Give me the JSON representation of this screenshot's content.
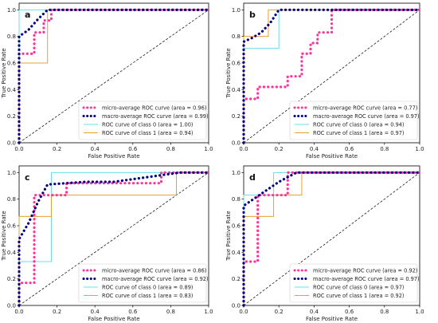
{
  "chart_data": [
    {
      "panel_label": "a",
      "type": "line",
      "xlabel": "False Positive Rate",
      "ylabel": "True Positive Rate",
      "xlim": [
        0,
        1
      ],
      "ylim": [
        0,
        1.05
      ],
      "xticks": [
        "0.0",
        "0.2",
        "0.4",
        "0.6",
        "0.8",
        "1.0"
      ],
      "yticks": [
        "0.0",
        "0.2",
        "0.4",
        "0.6",
        "0.8",
        "1.0"
      ],
      "legend_position": "lower-right",
      "series": [
        {
          "name": "micro-average ROC curve (area = 0.96)",
          "color": "#ff3399",
          "style": "dotted-thick",
          "points": [
            [
              0,
              0
            ],
            [
              0,
              0.67
            ],
            [
              0.08,
              0.67
            ],
            [
              0.08,
              0.83
            ],
            [
              0.13,
              0.83
            ],
            [
              0.13,
              0.92
            ],
            [
              0.17,
              0.92
            ],
            [
              0.17,
              1.0
            ],
            [
              1,
              1
            ]
          ]
        },
        {
          "name": "macro-average ROC curve (area = 0.99)",
          "color": "#000080",
          "style": "dotted-thick",
          "points": [
            [
              0,
              0
            ],
            [
              0,
              0.8
            ],
            [
              0.05,
              0.85
            ],
            [
              0.1,
              0.93
            ],
            [
              0.15,
              1.0
            ],
            [
              1,
              1
            ]
          ]
        },
        {
          "name": "ROC curve of class 0 (area = 1.00)",
          "color": "#66e0e8",
          "style": "solid",
          "points": [
            [
              0,
              0
            ],
            [
              0,
              1.0
            ],
            [
              1,
              1
            ]
          ]
        },
        {
          "name": "ROC curve of class 1 (area = 0.94)",
          "color": "#e8a030",
          "style": "solid",
          "points": [
            [
              0,
              0
            ],
            [
              0,
              0.6
            ],
            [
              0.15,
              0.6
            ],
            [
              0.15,
              1.0
            ],
            [
              1,
              1
            ]
          ]
        }
      ]
    },
    {
      "panel_label": "b",
      "type": "line",
      "xlabel": "False Positive Rate",
      "ylabel": "True Positive Rate",
      "xlim": [
        0,
        1
      ],
      "ylim": [
        0,
        1.05
      ],
      "xticks": [
        "0.0",
        "0.2",
        "0.4",
        "0.6",
        "0.8",
        "1.0"
      ],
      "yticks": [
        "0.0",
        "0.2",
        "0.4",
        "0.6",
        "0.8",
        "1.0"
      ],
      "legend_position": "lower-right",
      "series": [
        {
          "name": "micro-average ROC curve (area = 0.77)",
          "color": "#ff3399",
          "style": "dotted-thick",
          "points": [
            [
              0,
              0
            ],
            [
              0,
              0.33
            ],
            [
              0.08,
              0.33
            ],
            [
              0.08,
              0.42
            ],
            [
              0.25,
              0.42
            ],
            [
              0.25,
              0.5
            ],
            [
              0.33,
              0.5
            ],
            [
              0.33,
              0.67
            ],
            [
              0.38,
              0.67
            ],
            [
              0.38,
              0.75
            ],
            [
              0.42,
              0.75
            ],
            [
              0.42,
              0.83
            ],
            [
              0.5,
              0.83
            ],
            [
              0.5,
              1.0
            ],
            [
              1,
              1
            ]
          ]
        },
        {
          "name": "macro-average ROC curve (area = 0.97)",
          "color": "#000080",
          "style": "dotted-thick",
          "points": [
            [
              0,
              0
            ],
            [
              0,
              0.76
            ],
            [
              0.05,
              0.79
            ],
            [
              0.1,
              0.83
            ],
            [
              0.15,
              0.9
            ],
            [
              0.2,
              1.0
            ],
            [
              1,
              1
            ]
          ]
        },
        {
          "name": "ROC curve of class 0 (area = 0.94)",
          "color": "#66e0e8",
          "style": "solid",
          "points": [
            [
              0,
              0
            ],
            [
              0,
              0.71
            ],
            [
              0.2,
              0.71
            ],
            [
              0.2,
              1.0
            ],
            [
              1,
              1
            ]
          ]
        },
        {
          "name": "ROC curve of class 1 (area = 0.97)",
          "color": "#e8a030",
          "style": "solid",
          "points": [
            [
              0,
              0
            ],
            [
              0,
              0.8
            ],
            [
              0.14,
              0.8
            ],
            [
              0.14,
              1.0
            ],
            [
              1,
              1
            ]
          ]
        }
      ]
    },
    {
      "panel_label": "c",
      "type": "line",
      "xlabel": "False Positive Rate",
      "ylabel": "True Positive Rate",
      "xlim": [
        0,
        1
      ],
      "ylim": [
        0,
        1.05
      ],
      "xticks": [
        "0.0",
        "0.2",
        "0.4",
        "0.6",
        "0.8",
        "1.0"
      ],
      "yticks": [
        "0.0",
        "0.2",
        "0.4",
        "0.6",
        "0.8",
        "1.0"
      ],
      "legend_position": "lower-right",
      "series": [
        {
          "name": "micro-average ROC curve (area = 0.86)",
          "color": "#ff3399",
          "style": "dotted-thick",
          "points": [
            [
              0,
              0
            ],
            [
              0,
              0.17
            ],
            [
              0.08,
              0.17
            ],
            [
              0.08,
              0.83
            ],
            [
              0.25,
              0.83
            ],
            [
              0.25,
              0.92
            ],
            [
              0.75,
              0.92
            ],
            [
              0.75,
              1.0
            ],
            [
              1,
              1
            ]
          ]
        },
        {
          "name": "macro-average ROC curve (area = 0.92)",
          "color": "#000080",
          "style": "dotted-thick",
          "points": [
            [
              0,
              0
            ],
            [
              0,
              0.5
            ],
            [
              0.05,
              0.62
            ],
            [
              0.1,
              0.78
            ],
            [
              0.15,
              0.91
            ],
            [
              0.35,
              0.93
            ],
            [
              0.5,
              0.93
            ],
            [
              0.85,
              1.0
            ],
            [
              1,
              1
            ]
          ]
        },
        {
          "name": "ROC curve of class 0 (area = 0.89)",
          "color": "#66e0e8",
          "style": "solid",
          "points": [
            [
              0,
              0
            ],
            [
              0,
              0.33
            ],
            [
              0.17,
              0.33
            ],
            [
              0.17,
              1.0
            ],
            [
              1,
              1
            ]
          ]
        },
        {
          "name": "ROC curve of class 1 (area = 0.83)",
          "color": "#e8a030",
          "style": "solid",
          "points": [
            [
              0,
              0
            ],
            [
              0,
              0.67
            ],
            [
              0.17,
              0.67
            ],
            [
              0.17,
              0.83
            ],
            [
              0.83,
              0.83
            ],
            [
              0.83,
              1.0
            ],
            [
              1,
              1
            ]
          ]
        }
      ]
    },
    {
      "panel_label": "d",
      "type": "line",
      "xlabel": "False Positive Rate",
      "ylabel": "True Positive Rate",
      "xlim": [
        0,
        1
      ],
      "ylim": [
        0,
        1.05
      ],
      "xticks": [
        "0.0",
        "0.2",
        "0.4",
        "0.6",
        "0.8",
        "1.0"
      ],
      "yticks": [
        "0.0",
        "0.2",
        "0.4",
        "0.6",
        "0.8",
        "1.0"
      ],
      "legend_position": "lower-right",
      "series": [
        {
          "name": "micro-average ROC curve (area = 0.92)",
          "color": "#ff3399",
          "style": "dotted-thick",
          "points": [
            [
              0,
              0
            ],
            [
              0,
              0.33
            ],
            [
              0.08,
              0.33
            ],
            [
              0.08,
              0.83
            ],
            [
              0.25,
              0.83
            ],
            [
              0.25,
              1.0
            ],
            [
              1,
              1
            ]
          ]
        },
        {
          "name": "macro-average ROC curve (area = 0.97)",
          "color": "#000080",
          "style": "dotted-thick",
          "points": [
            [
              0,
              0
            ],
            [
              0,
              0.75
            ],
            [
              0.1,
              0.84
            ],
            [
              0.2,
              0.93
            ],
            [
              0.3,
              1.0
            ],
            [
              1,
              1
            ]
          ]
        },
        {
          "name": "ROC curve of class 0 (area = 0.97)",
          "color": "#66e0e8",
          "style": "solid",
          "points": [
            [
              0,
              0
            ],
            [
              0,
              0.83
            ],
            [
              0.17,
              0.83
            ],
            [
              0.17,
              1.0
            ],
            [
              1,
              1
            ]
          ]
        },
        {
          "name": "ROC curve of class 1 (area = 0.92)",
          "color": "#e8a030",
          "style": "solid",
          "points": [
            [
              0,
              0
            ],
            [
              0,
              0.67
            ],
            [
              0.17,
              0.67
            ],
            [
              0.17,
              0.83
            ],
            [
              0.33,
              0.83
            ],
            [
              0.33,
              1.0
            ],
            [
              1,
              1
            ]
          ]
        }
      ]
    }
  ]
}
